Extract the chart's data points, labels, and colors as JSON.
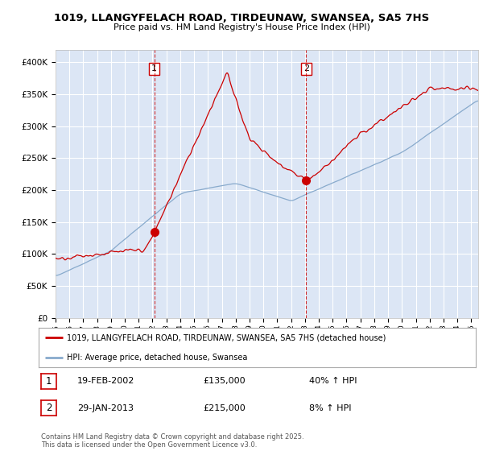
{
  "title_line1": "1019, LLANGYFELACH ROAD, TIRDEUNAW, SWANSEA, SA5 7HS",
  "title_line2": "Price paid vs. HM Land Registry's House Price Index (HPI)",
  "annotation1_date": "19-FEB-2002",
  "annotation1_price": 135000,
  "annotation1_hpi": "40% ↑ HPI",
  "annotation2_date": "29-JAN-2013",
  "annotation2_price": 215000,
  "annotation2_hpi": "8% ↑ HPI",
  "legend_line1": "1019, LLANGYFELACH ROAD, TIRDEUNAW, SWANSEA, SA5 7HS (detached house)",
  "legend_line2": "HPI: Average price, detached house, Swansea",
  "footnote": "Contains HM Land Registry data © Crown copyright and database right 2025.\nThis data is licensed under the Open Government Licence v3.0.",
  "line_color_red": "#cc0000",
  "line_color_blue": "#88aacc",
  "background_color": "#dce6f5",
  "plot_bg_color": "#ffffff",
  "vline_color": "#cc0000",
  "marker1_date_num": 2002.12,
  "marker2_date_num": 2013.08,
  "ylim": [
    0,
    420000
  ],
  "xlim_start": 1995,
  "xlim_end": 2025.5,
  "yticks": [
    0,
    50000,
    100000,
    150000,
    200000,
    250000,
    300000,
    350000,
    400000
  ]
}
